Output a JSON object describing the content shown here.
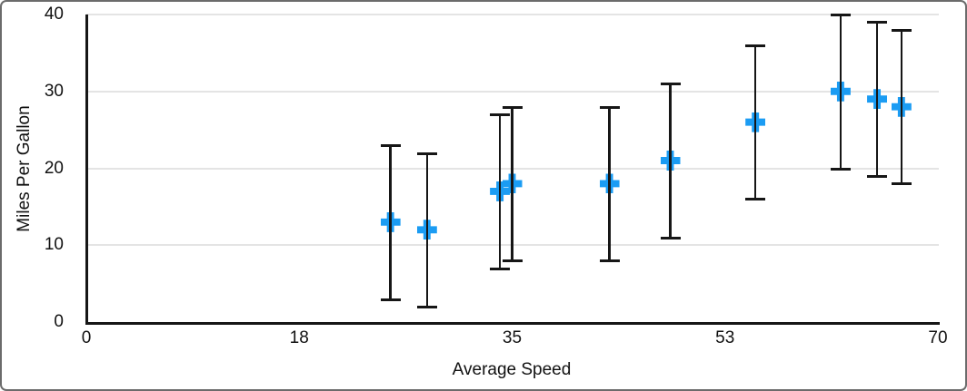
{
  "chart_data": {
    "type": "scatter",
    "xlabel": "Average Speed",
    "ylabel": "Miles Per Gallon",
    "x_axis": {
      "min": 0,
      "max": 70,
      "tick_labels": [
        "0",
        "18",
        "35",
        "53",
        "70"
      ]
    },
    "y_axis": {
      "min": 0,
      "max": 40,
      "tick_labels": [
        "0",
        "10",
        "20",
        "30",
        "40"
      ]
    },
    "grid": "horizontal-only",
    "legend": "none",
    "series": [
      {
        "marker": "plus",
        "marker_color": "#1b9cf3",
        "error_bars": {
          "type": "fixed",
          "plus": 10,
          "minus": 10,
          "color": "#161616",
          "caps": true
        },
        "points": [
          {
            "x": 25,
            "y": 13
          },
          {
            "x": 28,
            "y": 12
          },
          {
            "x": 34,
            "y": 17
          },
          {
            "x": 35,
            "y": 18
          },
          {
            "x": 43,
            "y": 18
          },
          {
            "x": 48,
            "y": 21
          },
          {
            "x": 55,
            "y": 26
          },
          {
            "x": 62,
            "y": 30
          },
          {
            "x": 65,
            "y": 29
          },
          {
            "x": 67,
            "y": 28
          }
        ]
      }
    ]
  },
  "colors": {
    "background": "#ffffff",
    "axis": "#161616",
    "gridline": "#e4e4e4",
    "marker": "#1b9cf3",
    "tick_text": "#111111",
    "frame_border": "#6b6b6b"
  }
}
